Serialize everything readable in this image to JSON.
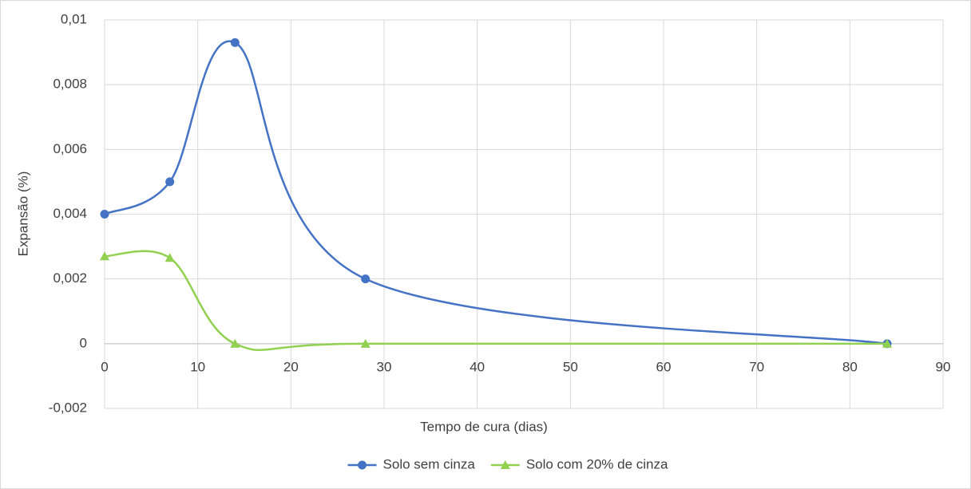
{
  "chart_data": {
    "type": "line",
    "smooth": true,
    "grid": true,
    "x_label": "Tempo de cura (dias)",
    "y_label": "Expansão (%)",
    "x": [
      0,
      7,
      14,
      28,
      84
    ],
    "series": [
      {
        "name": "Solo sem cinza",
        "color": "#4472c4",
        "marker": "circle",
        "values": [
          0.004,
          0.005,
          0.0093,
          0.002,
          0
        ]
      },
      {
        "name": "Solo com 20% de cinza",
        "color": "#92d050",
        "marker": "triangle",
        "values": [
          0.0027,
          0.00265,
          0,
          0,
          0
        ]
      }
    ],
    "xlim": [
      0,
      90
    ],
    "xticks": [
      0,
      10,
      20,
      30,
      40,
      50,
      60,
      70,
      80,
      90
    ],
    "ylim": [
      -0.002,
      0.01
    ],
    "yticks": [
      {
        "value": -0.002,
        "label": "-0,002"
      },
      0,
      {
        "value": 0.002,
        "label": "0,002"
      },
      {
        "value": 0.004,
        "label": "0,004"
      },
      {
        "value": 0.006,
        "label": "0,006"
      },
      {
        "value": 0.008,
        "label": "0,008"
      },
      {
        "value": 0.01,
        "label": "0,01"
      }
    ],
    "legend": "bottom"
  }
}
